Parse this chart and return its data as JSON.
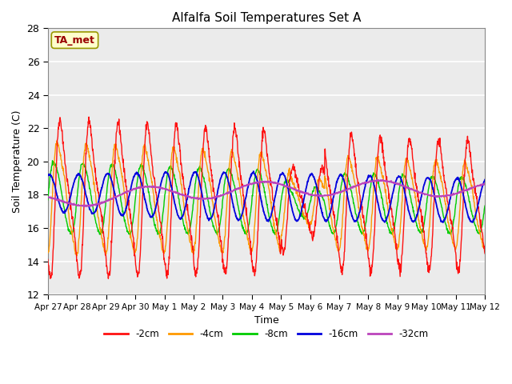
{
  "title": "Alfalfa Soil Temperatures Set A",
  "xlabel": "Time",
  "ylabel": "Soil Temperature (C)",
  "ylim": [
    12,
    28
  ],
  "yticks": [
    12,
    14,
    16,
    18,
    20,
    22,
    24,
    26,
    28
  ],
  "background_color": "#ebebeb",
  "legend_label": "TA_met",
  "legend_text_color": "#990000",
  "legend_box_color": "#ffffcc",
  "legend_box_edge": "#999900",
  "series_colors": {
    "-2cm": "#ff1111",
    "-4cm": "#ff9900",
    "-8cm": "#00cc00",
    "-16cm": "#0000dd",
    "-32cm": "#bb44bb"
  },
  "x_tick_labels": [
    "Apr 27",
    "Apr 28",
    "Apr 29",
    "Apr 30",
    "May 1",
    "May 2",
    "May 3",
    "May 4",
    "May 5",
    "May 6",
    "May 7",
    "May 8",
    "May 9",
    "May 10",
    "May 11",
    "May 12"
  ]
}
